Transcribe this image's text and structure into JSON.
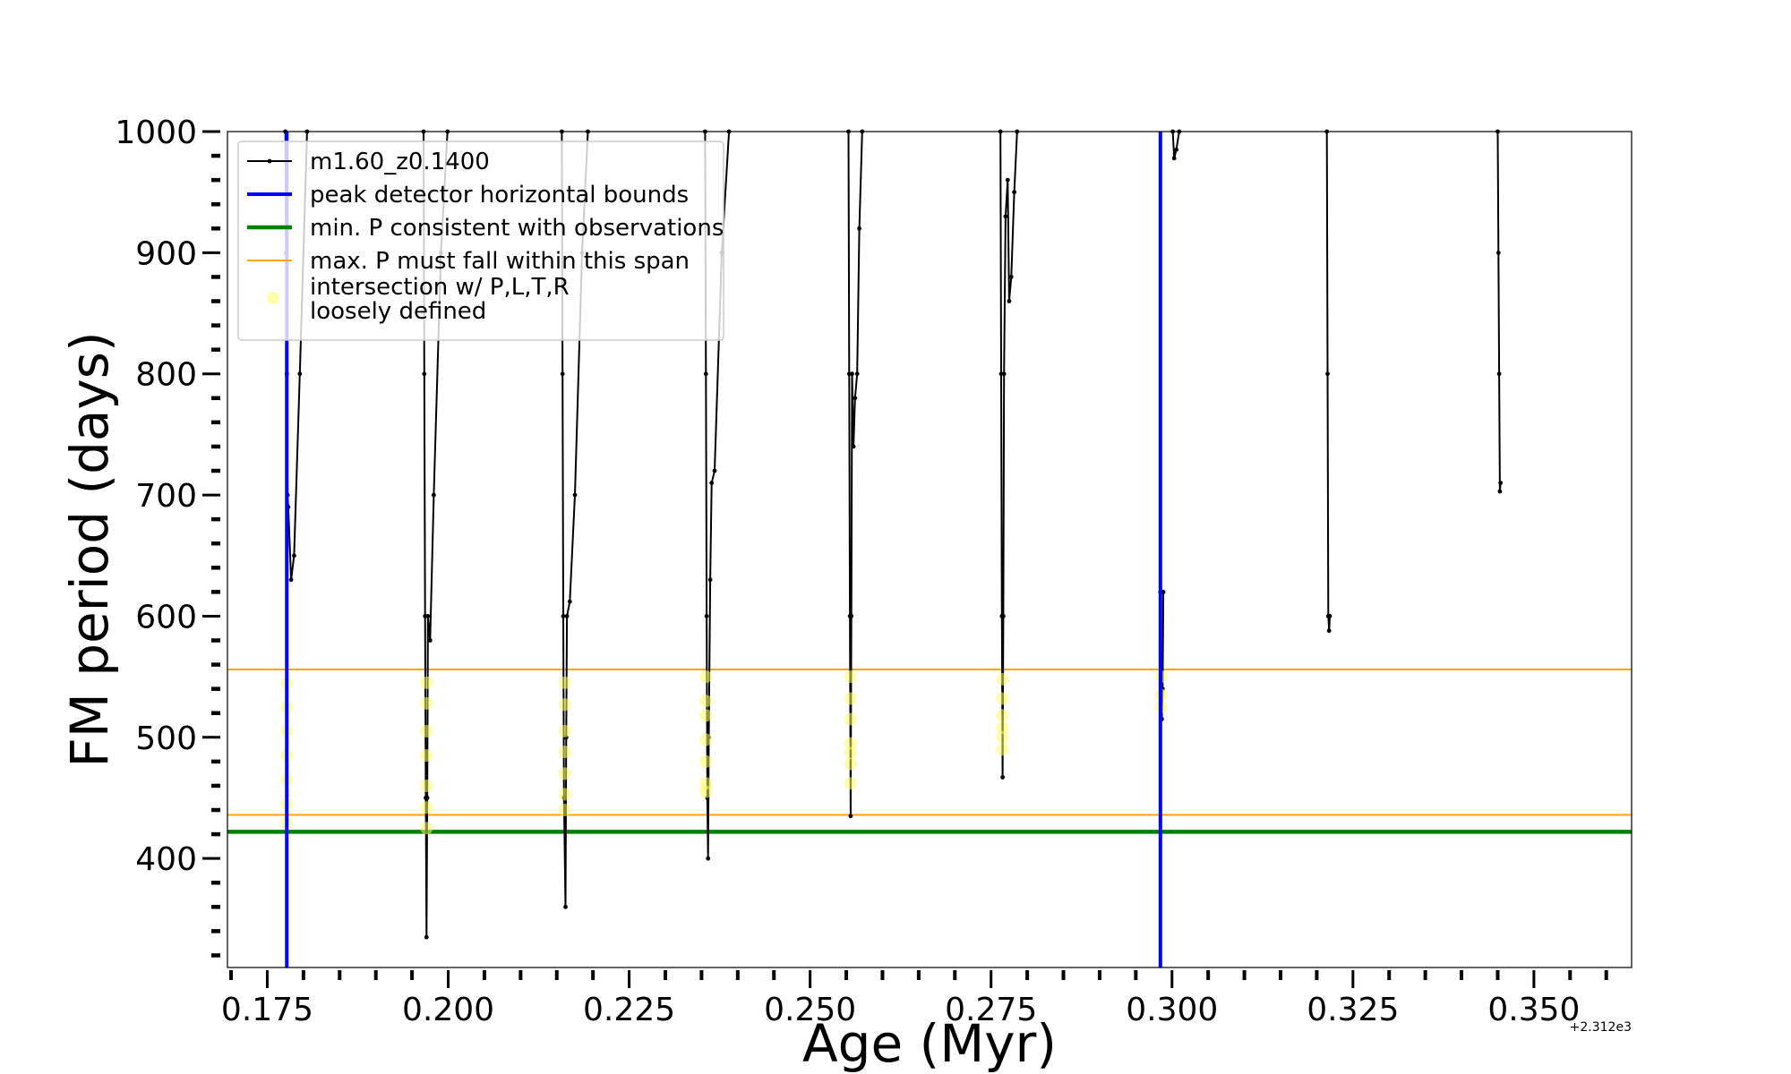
{
  "chart_data": {
    "type": "line",
    "xlabel": "Age (Myr)",
    "ylabel": "FM period (days)",
    "x_offset_label": "+2.312e3",
    "xlim": [
      0.1695,
      0.3635
    ],
    "ylim": [
      310,
      1000
    ],
    "x_ticks": [
      0.175,
      0.2,
      0.225,
      0.25,
      0.275,
      0.3,
      0.325,
      0.35
    ],
    "x_tick_labels": [
      "0.175",
      "0.200",
      "0.225",
      "0.250",
      "0.275",
      "0.300",
      "0.325",
      "0.350"
    ],
    "y_ticks": [
      400,
      500,
      600,
      700,
      800,
      900,
      1000
    ],
    "y_tick_labels": [
      "400",
      "500",
      "600",
      "700",
      "800",
      "900",
      "1000"
    ],
    "legend_position": "upper-left",
    "colors": {
      "model": "#000000",
      "peak_bounds": "#0000ff",
      "min_period": "#008000",
      "max_span": "#ffa500",
      "intersection": "#ffff66"
    },
    "series": [
      {
        "name": "m1.60_z0.1400",
        "segments": [
          [
            [
              0.1775,
              1000
            ],
            [
              0.1776,
              900
            ],
            [
              0.1777,
              800
            ],
            [
              0.1778,
              700
            ],
            [
              0.1779,
              690
            ],
            [
              0.1783,
              630
            ],
            [
              0.1787,
              650
            ],
            [
              0.1795,
              800
            ],
            [
              0.1805,
              1000
            ]
          ],
          [
            [
              0.1966,
              1000
            ],
            [
              0.1967,
              800
            ],
            [
              0.1968,
              600
            ],
            [
              0.1969,
              450
            ],
            [
              0.197,
              335
            ],
            [
              0.1971,
              450
            ],
            [
              0.1972,
              600
            ],
            [
              0.1975,
              580
            ],
            [
              0.198,
              700
            ],
            [
              0.199,
              900
            ],
            [
              0.1999,
              1000
            ]
          ],
          [
            [
              0.2157,
              1000
            ],
            [
              0.2158,
              800
            ],
            [
              0.2159,
              600
            ],
            [
              0.216,
              450
            ],
            [
              0.2162,
              360
            ],
            [
              0.2163,
              500
            ],
            [
              0.2164,
              600
            ],
            [
              0.2168,
              612
            ],
            [
              0.2175,
              700
            ],
            [
              0.2185,
              900
            ],
            [
              0.2193,
              1000
            ]
          ],
          [
            [
              0.2355,
              1000
            ],
            [
              0.2356,
              800
            ],
            [
              0.2357,
              600
            ],
            [
              0.2358,
              450
            ],
            [
              0.2359,
              400
            ],
            [
              0.236,
              500
            ],
            [
              0.2362,
              630
            ],
            [
              0.2364,
              710
            ],
            [
              0.2368,
              720
            ],
            [
              0.2378,
              900
            ],
            [
              0.2388,
              1000
            ]
          ],
          [
            [
              0.2553,
              1000
            ],
            [
              0.2554,
              800
            ],
            [
              0.2555,
              600
            ],
            [
              0.2556,
              435
            ],
            [
              0.2557,
              600
            ],
            [
              0.2558,
              800
            ],
            [
              0.256,
              740
            ],
            [
              0.2562,
              780
            ],
            [
              0.2565,
              800
            ],
            [
              0.2568,
              920
            ],
            [
              0.2572,
              1000
            ]
          ],
          [
            [
              0.2763,
              1000
            ],
            [
              0.2764,
              800
            ],
            [
              0.2765,
              600
            ],
            [
              0.2766,
              467
            ],
            [
              0.2767,
              600
            ],
            [
              0.2768,
              800
            ],
            [
              0.277,
              930
            ],
            [
              0.2773,
              960
            ],
            [
              0.2775,
              860
            ],
            [
              0.2778,
              880
            ],
            [
              0.2782,
              950
            ],
            [
              0.2786,
              1000
            ]
          ],
          [
            [
              0.2984,
              620
            ],
            [
              0.2985,
              540
            ],
            [
              0.2986,
              515
            ],
            [
              0.2987,
              540
            ],
            [
              0.2988,
              620
            ]
          ],
          [
            [
              0.3001,
              1000
            ],
            [
              0.3003,
              978
            ],
            [
              0.3006,
              985
            ],
            [
              0.301,
              1000
            ]
          ],
          [
            [
              0.3214,
              1000
            ],
            [
              0.3215,
              800
            ],
            [
              0.3216,
              600
            ],
            [
              0.3217,
              588
            ],
            [
              0.3218,
              600
            ]
          ],
          [
            [
              0.345,
              1000
            ],
            [
              0.3451,
              900
            ],
            [
              0.3452,
              800
            ],
            [
              0.3453,
              703
            ],
            [
              0.3454,
              710
            ]
          ]
        ]
      },
      {
        "name": "peak detector horizontal bounds",
        "x": [
          0.1777,
          0.2984
        ]
      },
      {
        "name": "min. P consistent with observations",
        "y": 422
      },
      {
        "name": "max. P must fall within this span",
        "y": [
          436,
          556
        ]
      },
      {
        "name": "intersection w/ P,L,T,R\nloosely defined",
        "points": [
          [
            0.1777,
            545
          ],
          [
            0.1777,
            525
          ],
          [
            0.1777,
            505
          ],
          [
            0.1777,
            485
          ],
          [
            0.1777,
            465
          ],
          [
            0.1777,
            445
          ],
          [
            0.1777,
            430
          ],
          [
            0.197,
            545
          ],
          [
            0.197,
            528
          ],
          [
            0.197,
            505
          ],
          [
            0.197,
            485
          ],
          [
            0.197,
            460
          ],
          [
            0.197,
            442
          ],
          [
            0.197,
            425
          ],
          [
            0.2161,
            545
          ],
          [
            0.2161,
            527
          ],
          [
            0.2161,
            505
          ],
          [
            0.2161,
            488
          ],
          [
            0.2161,
            470
          ],
          [
            0.2161,
            453
          ],
          [
            0.2161,
            440
          ],
          [
            0.2356,
            550
          ],
          [
            0.2356,
            530
          ],
          [
            0.2356,
            518
          ],
          [
            0.2356,
            498
          ],
          [
            0.2356,
            480
          ],
          [
            0.2356,
            462
          ],
          [
            0.2356,
            455
          ],
          [
            0.2556,
            550
          ],
          [
            0.2556,
            532
          ],
          [
            0.2556,
            515
          ],
          [
            0.2556,
            495
          ],
          [
            0.2556,
            487
          ],
          [
            0.2556,
            478
          ],
          [
            0.2556,
            462
          ],
          [
            0.2766,
            548
          ],
          [
            0.2766,
            532
          ],
          [
            0.2766,
            518
          ],
          [
            0.2766,
            508
          ],
          [
            0.2766,
            500
          ],
          [
            0.2766,
            490
          ],
          [
            0.2985,
            550
          ],
          [
            0.2985,
            535
          ],
          [
            0.2985,
            525
          ]
        ]
      }
    ]
  }
}
